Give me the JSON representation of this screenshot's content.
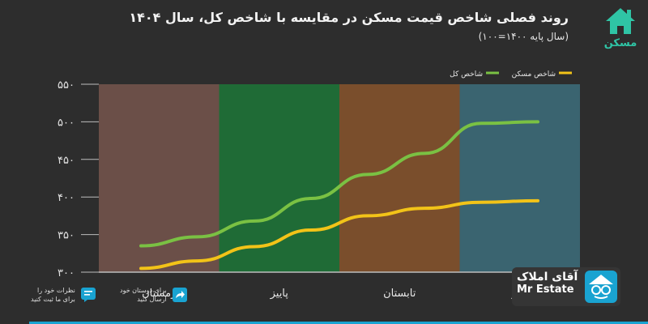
{
  "chart_data": {
    "type": "line",
    "title": "روند فصلی شاخص قیمت مسکن در مقایسه با شاخص کل، سال ۱۴۰۴",
    "subtitle": "(سال پایه ۱۴۰۰=۱۰۰)",
    "categories": [
      "زمستان",
      "پاییز",
      "تابستان",
      "بهار"
    ],
    "x": [
      0,
      1,
      2,
      3,
      4,
      5,
      6,
      7
    ],
    "series": [
      {
        "name": "شاخص کل",
        "color": "#7ac143",
        "values": [
          335,
          347,
          368,
          398,
          430,
          458,
          498,
          500
        ]
      },
      {
        "name": "شاخص مسکن",
        "color": "#f2c318",
        "values": [
          305,
          315,
          334,
          356,
          375,
          385,
          393,
          395
        ]
      }
    ],
    "ylim": [
      300,
      550
    ],
    "yticks": [
      300,
      350,
      400,
      450,
      500,
      550
    ],
    "ytick_labels": [
      "۳۰۰",
      "۳۵۰",
      "۴۰۰",
      "۴۵۰",
      "۵۰۰",
      "۵۵۰"
    ],
    "grid": false,
    "legend": "top",
    "season_colors": [
      "#6b4f48",
      "#1f6b36",
      "#7a4e2c",
      "#3a6470"
    ]
  },
  "brand": {
    "name_fa": "آقای املاک",
    "name_en": "Mr Estate"
  },
  "logo_top": {
    "label": "مسکن"
  },
  "social": {
    "share_label": "برای دوستان خود\nارسال کنید",
    "comment_label": "نظرات خود را\nبرای ما ثبت کنید"
  },
  "colors": {
    "accent": "#2fc4a5",
    "blue": "#19a3d1"
  }
}
